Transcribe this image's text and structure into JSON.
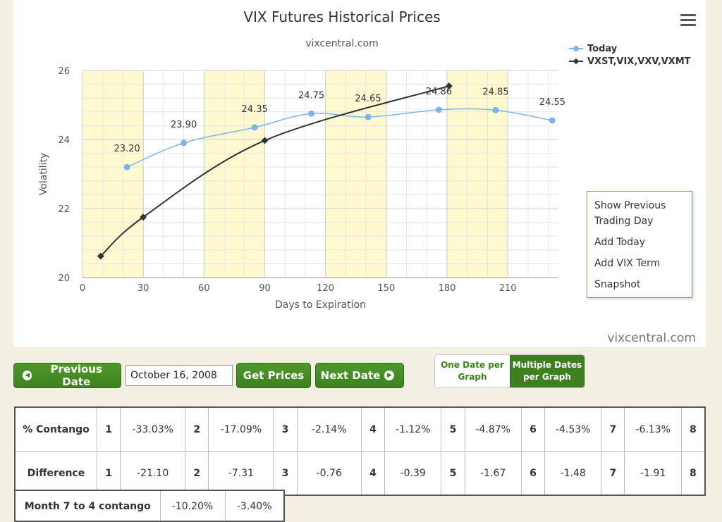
{
  "chart_data": {
    "type": "line",
    "title": "VIX Futures Historical Prices",
    "subtitle": "vixcentral.com",
    "xlabel": "Days to Expiration",
    "ylabel": "Volatility",
    "xlim": [
      0,
      235
    ],
    "ylim": [
      20,
      26
    ],
    "x_ticks": [
      0,
      30,
      60,
      90,
      120,
      150,
      180,
      210
    ],
    "y_ticks": [
      20,
      22,
      24,
      26
    ],
    "shaded_bands": [
      [
        0,
        30
      ],
      [
        60,
        90
      ],
      [
        120,
        150
      ],
      [
        180,
        210
      ]
    ],
    "legend_position": "top-right",
    "series": [
      {
        "name": "Today",
        "color": "#7cb5ec",
        "x": [
          22,
          50,
          85,
          113,
          141,
          176,
          204,
          232
        ],
        "y": [
          23.2,
          23.9,
          24.35,
          24.75,
          24.65,
          24.86,
          24.85,
          24.55
        ],
        "labels": [
          "23.20",
          "23.90",
          "24.35",
          "24.75",
          "24.65",
          "24.86",
          "24.85",
          "24.55"
        ]
      },
      {
        "name": "VXST,VIX,VXV,VXMT",
        "color": "#333333",
        "x": [
          9,
          30,
          90,
          181
        ],
        "y": [
          20.62,
          21.75,
          23.97,
          25.55
        ]
      }
    ]
  },
  "context_menu": {
    "items": [
      "Show Previous Trading Day",
      "Add Today",
      "Add VIX Term",
      "Snapshot"
    ]
  },
  "watermark": "vixcentral.com",
  "controls": {
    "prev_label": "Previous Date",
    "date_value": "October 16, 2008",
    "get_label": "Get Prices",
    "next_label": "Next Date",
    "toggle_one": "One Date per Graph",
    "toggle_multi": "Multiple Dates per Graph"
  },
  "contango_table": {
    "row1_label": "% Contango",
    "row2_label": "Difference",
    "months": [
      "1",
      "2",
      "3",
      "4",
      "5",
      "6",
      "7",
      "8"
    ],
    "contango": [
      "-33.03%",
      "-17.09%",
      "-2.14%",
      "-1.12%",
      "-4.87%",
      "-4.53%",
      "-6.13%",
      ""
    ],
    "difference": [
      "-21.10",
      "-7.31",
      "-0.76",
      "-0.39",
      "-1.67",
      "-1.48",
      "-1.91",
      ""
    ]
  },
  "month_table": {
    "label": "Month 7 to 4 contango",
    "val1": "-10.20%",
    "val2": "-3.40%"
  },
  "colors": {
    "accent_green": "#3d8020",
    "band_yellow": "#fff9d0",
    "today_blue": "#7cb5ec"
  }
}
